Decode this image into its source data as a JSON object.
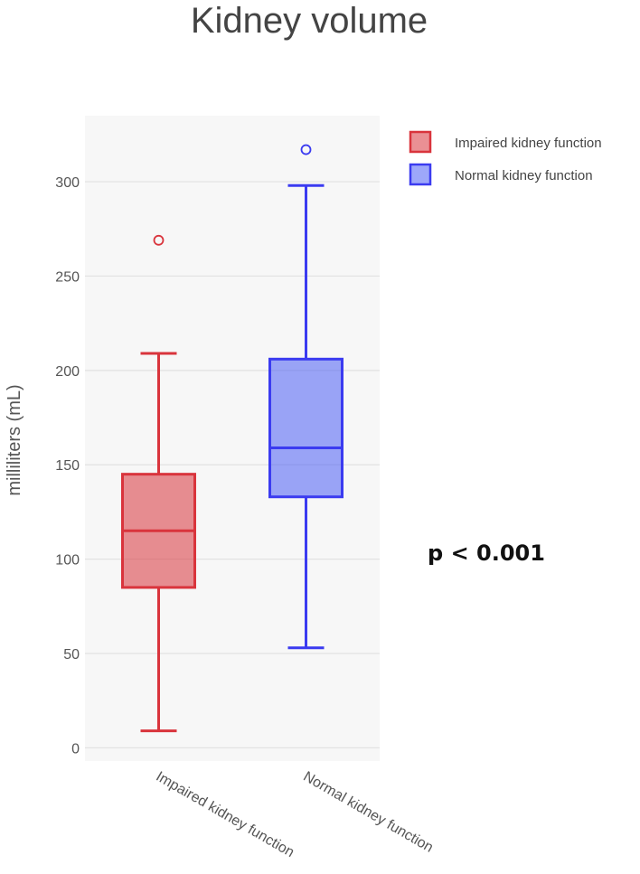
{
  "chart_data": {
    "type": "box",
    "title": "Kidney volume",
    "xlabel": "",
    "ylabel": "milliliters (mL)",
    "ylim": [
      -7,
      335
    ],
    "yticks": [
      0,
      50,
      100,
      150,
      200,
      250,
      300
    ],
    "grid": true,
    "legend_position": "top-right",
    "annotation": "p < 0.001",
    "categories": [
      "Impaired kidney function",
      "Normal kidney function"
    ],
    "series": [
      {
        "name": "Impaired kidney function",
        "color": "#d9343c",
        "fill": "rgba(217,52,60,0.55)",
        "whisker_low": 9,
        "q1": 85,
        "median": 115,
        "q3": 145,
        "whisker_high": 209,
        "outliers": [
          269
        ]
      },
      {
        "name": "Normal kidney function",
        "color": "#3b3bf0",
        "fill": "rgba(60,80,245,0.5)",
        "whisker_low": 53,
        "q1": 133,
        "median": 159,
        "q3": 206,
        "whisker_high": 298,
        "outliers": [
          317
        ]
      }
    ]
  }
}
